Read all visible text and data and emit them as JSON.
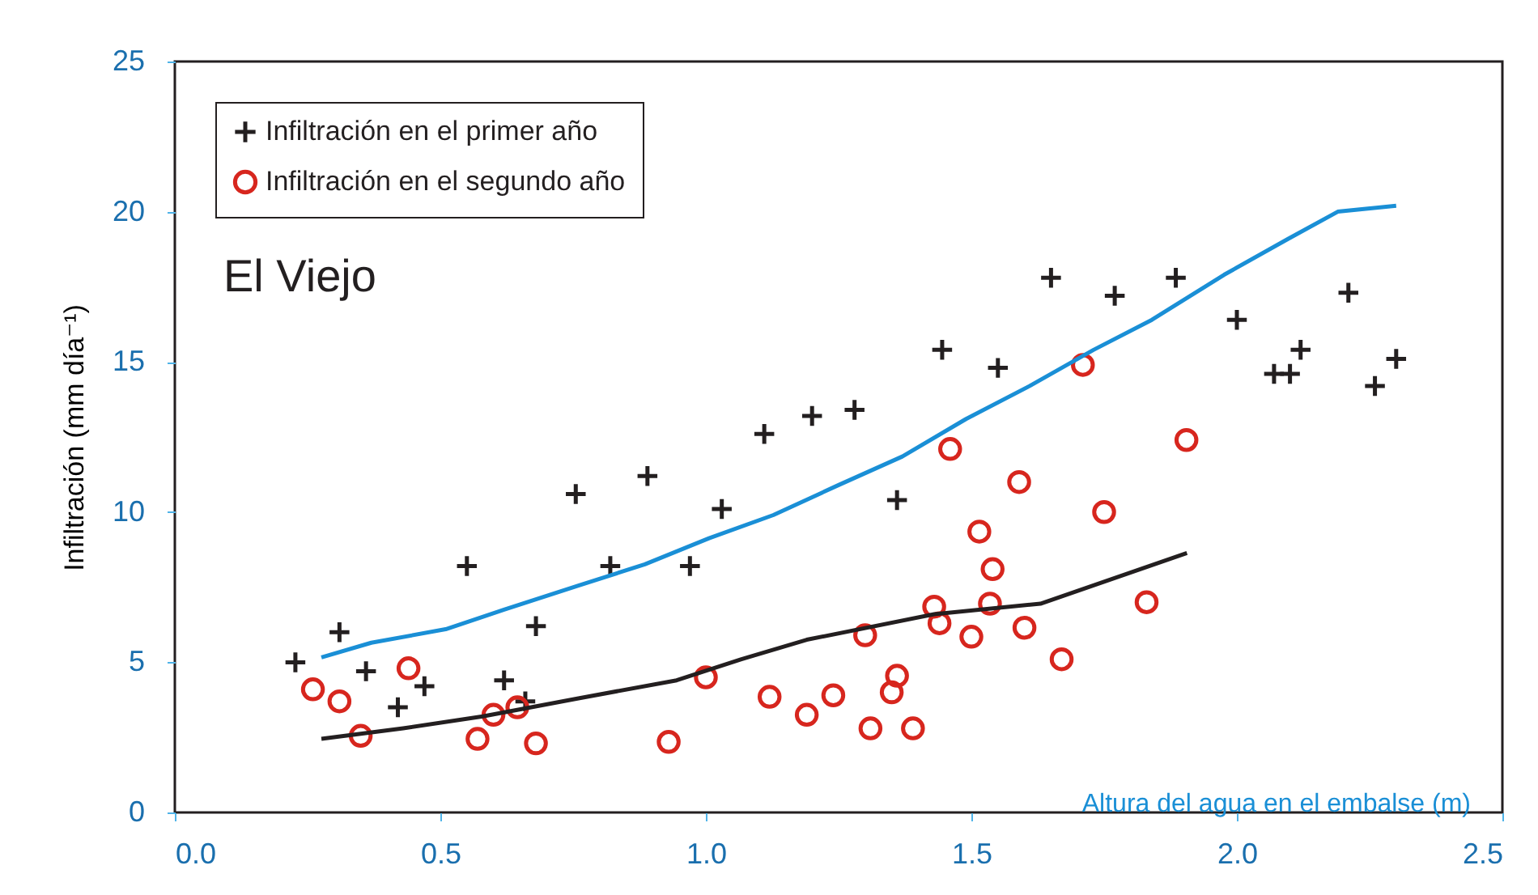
{
  "chart_data": {
    "type": "scatter",
    "xlabel": "Altura del agua en el embalse (m)",
    "ylabel": "Infiltración (mm día⁻¹)",
    "annotations": [
      "El Viejo"
    ],
    "xlim": [
      0,
      2.5
    ],
    "xticks": [
      {
        "value": 0,
        "label": "0.0"
      },
      0.5,
      {
        "value": 1,
        "label": "1.0"
      },
      1.5,
      {
        "value": 2,
        "label": "2.0"
      },
      2.5
    ],
    "ylim": [
      0,
      25
    ],
    "yticks": [
      0,
      5,
      10,
      15,
      20,
      25
    ],
    "grid": false,
    "legend": "top left",
    "series": [
      {
        "name": "Infiltración en el primer año",
        "marker": "cross",
        "color": "#231f20",
        "x": [
          0.227,
          0.31,
          0.36,
          0.42,
          0.47,
          0.55,
          0.62,
          0.66,
          0.68,
          0.755,
          0.82,
          0.89,
          0.97,
          1.03,
          1.11,
          1.2,
          1.28,
          1.36,
          1.445,
          1.55,
          1.65,
          1.77,
          1.885,
          2.0,
          2.07,
          2.1,
          2.12,
          2.21,
          2.26,
          2.3
        ],
        "values": [
          5.0,
          6.0,
          4.7,
          3.5,
          4.2,
          8.2,
          4.4,
          3.7,
          6.2,
          10.6,
          8.2,
          11.2,
          8.2,
          10.1,
          12.6,
          13.2,
          13.4,
          10.4,
          15.4,
          14.8,
          17.8,
          17.2,
          17.8,
          16.4,
          14.6,
          14.6,
          15.4,
          17.3,
          14.2,
          15.1
        ]
      },
      {
        "name": "Infiltración en el segundo año",
        "marker": "circle",
        "color": "#d7261e",
        "x": [
          0.26,
          0.31,
          0.35,
          0.44,
          0.57,
          0.6,
          0.645,
          0.68,
          0.93,
          1.0,
          1.12,
          1.19,
          1.24,
          1.3,
          1.31,
          1.35,
          1.36,
          1.39,
          1.43,
          1.44,
          1.46,
          1.5,
          1.515,
          1.54,
          1.535,
          1.59,
          1.6,
          1.67,
          1.71,
          1.75,
          1.83,
          1.905
        ],
        "values": [
          4.1,
          3.7,
          2.55,
          4.8,
          2.45,
          3.25,
          3.5,
          2.3,
          2.35,
          4.5,
          3.85,
          3.25,
          3.9,
          5.9,
          2.8,
          4.0,
          4.55,
          2.8,
          6.85,
          6.3,
          12.1,
          5.85,
          9.35,
          8.1,
          6.95,
          11.0,
          6.15,
          5.1,
          14.9,
          10.0,
          7.0,
          12.4
        ]
      },
      {
        "type": "line",
        "color": "#1a8fd6",
        "x": [
          0.276,
          0.37,
          0.51,
          0.62,
          0.76,
          0.885,
          1.006,
          1.127,
          1.25,
          1.37,
          1.49,
          1.61,
          1.73,
          1.84,
          1.976,
          2.097,
          2.19,
          2.3
        ],
        "values": [
          5.16,
          5.65,
          6.1,
          6.75,
          7.55,
          8.26,
          9.13,
          9.9,
          10.9,
          11.85,
          13.1,
          14.2,
          15.4,
          16.4,
          17.9,
          19.1,
          20.0,
          20.2
        ]
      },
      {
        "type": "line",
        "color": "#231f20",
        "x": [
          0.276,
          0.43,
          0.58,
          0.76,
          0.945,
          1.067,
          1.19,
          1.43,
          1.63,
          1.906
        ],
        "values": [
          2.45,
          2.8,
          3.2,
          3.8,
          4.4,
          5.1,
          5.75,
          6.6,
          6.95,
          8.64
        ]
      }
    ]
  }
}
